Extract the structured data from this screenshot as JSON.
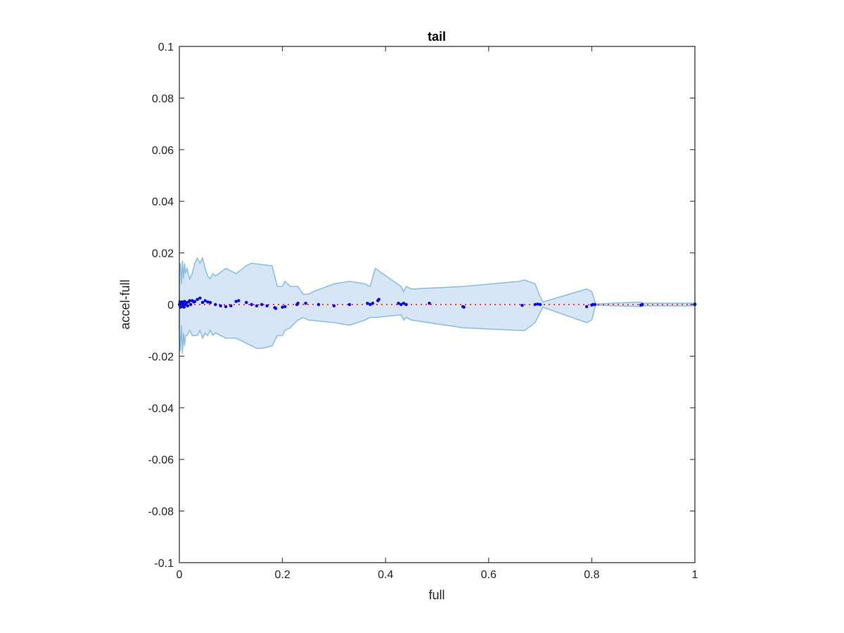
{
  "chart_data": {
    "type": "scatter",
    "title": "tail",
    "xlabel": "full",
    "ylabel": "accel-full",
    "xlim": [
      0,
      1
    ],
    "ylim": [
      -0.1,
      0.1
    ],
    "xticks": [
      0,
      0.2,
      0.4,
      0.6,
      0.8,
      1
    ],
    "xtick_labels": [
      "0",
      "0.2",
      "0.4",
      "0.6",
      "0.8",
      "1"
    ],
    "yticks": [
      0.1,
      0.08,
      0.06,
      0.04,
      0.02,
      0,
      -0.02,
      -0.04,
      -0.06,
      -0.08,
      -0.1
    ],
    "ytick_labels": [
      "0.1",
      "0.08",
      "0.06",
      "0.04",
      "0.02",
      "0",
      "-0.02",
      "-0.04",
      "-0.06",
      "-0.08",
      "-0.1"
    ],
    "grid": false,
    "colors": {
      "band_fill": "#d6e6f4",
      "band_edge": "#88bde0",
      "points": "#0000ff",
      "zero_line": "#ff0000",
      "axes": "#262626"
    },
    "band_upper": [
      [
        0,
        0.012
      ],
      [
        0.002,
        0.016
      ],
      [
        0.004,
        0.008
      ],
      [
        0.006,
        0.017
      ],
      [
        0.008,
        0.01
      ],
      [
        0.01,
        0.016
      ],
      [
        0.012,
        0.012
      ],
      [
        0.015,
        0.014
      ],
      [
        0.02,
        0.01
      ],
      [
        0.025,
        0.012
      ],
      [
        0.03,
        0.016
      ],
      [
        0.035,
        0.018
      ],
      [
        0.04,
        0.016
      ],
      [
        0.045,
        0.018
      ],
      [
        0.05,
        0.014
      ],
      [
        0.055,
        0.011
      ],
      [
        0.06,
        0.01
      ],
      [
        0.065,
        0.012
      ],
      [
        0.07,
        0.011
      ],
      [
        0.09,
        0.014
      ],
      [
        0.11,
        0.012
      ],
      [
        0.13,
        0.015
      ],
      [
        0.14,
        0.016
      ],
      [
        0.18,
        0.015
      ],
      [
        0.19,
        0.007
      ],
      [
        0.2,
        0.007
      ],
      [
        0.205,
        0.009
      ],
      [
        0.215,
        0.007
      ],
      [
        0.23,
        0.007
      ],
      [
        0.24,
        0.004
      ],
      [
        0.25,
        0.004
      ],
      [
        0.26,
        0.005
      ],
      [
        0.3,
        0.008
      ],
      [
        0.33,
        0.009
      ],
      [
        0.36,
        0.008
      ],
      [
        0.37,
        0.007
      ],
      [
        0.38,
        0.014
      ],
      [
        0.43,
        0.007
      ],
      [
        0.435,
        0.005
      ],
      [
        0.44,
        0.007
      ],
      [
        0.45,
        0.006
      ],
      [
        0.55,
        0.007
      ],
      [
        0.55,
        0.007
      ],
      [
        0.66,
        0.009
      ],
      [
        0.67,
        0.0095
      ],
      [
        0.69,
        0.008
      ],
      [
        0.7,
        0.003
      ],
      [
        0.705,
        0.001
      ],
      [
        0.79,
        0.006
      ],
      [
        0.8,
        0.005
      ],
      [
        0.805,
        0.002
      ],
      [
        0.807,
        0.0002
      ],
      [
        0.895,
        0.001
      ],
      [
        0.9,
        0.0005
      ],
      [
        1,
        0.0005
      ]
    ],
    "band_lower": [
      [
        0,
        -0.01
      ],
      [
        0.002,
        -0.018
      ],
      [
        0.004,
        -0.008
      ],
      [
        0.006,
        -0.019
      ],
      [
        0.008,
        -0.011
      ],
      [
        0.01,
        -0.016
      ],
      [
        0.012,
        -0.012
      ],
      [
        0.015,
        -0.012
      ],
      [
        0.02,
        -0.01
      ],
      [
        0.025,
        -0.012
      ],
      [
        0.03,
        -0.012
      ],
      [
        0.035,
        -0.012
      ],
      [
        0.04,
        -0.01
      ],
      [
        0.045,
        -0.013
      ],
      [
        0.05,
        -0.011
      ],
      [
        0.055,
        -0.012
      ],
      [
        0.06,
        -0.01
      ],
      [
        0.065,
        -0.012
      ],
      [
        0.07,
        -0.011
      ],
      [
        0.09,
        -0.013
      ],
      [
        0.11,
        -0.013
      ],
      [
        0.13,
        -0.015
      ],
      [
        0.15,
        -0.017
      ],
      [
        0.16,
        -0.017
      ],
      [
        0.18,
        -0.016
      ],
      [
        0.19,
        -0.012
      ],
      [
        0.2,
        -0.012
      ],
      [
        0.205,
        -0.01
      ],
      [
        0.215,
        -0.009
      ],
      [
        0.23,
        -0.006
      ],
      [
        0.24,
        -0.005
      ],
      [
        0.25,
        -0.006
      ],
      [
        0.3,
        -0.007
      ],
      [
        0.33,
        -0.008
      ],
      [
        0.36,
        -0.006
      ],
      [
        0.37,
        -0.005
      ],
      [
        0.38,
        -0.005
      ],
      [
        0.43,
        -0.004
      ],
      [
        0.435,
        -0.006
      ],
      [
        0.44,
        -0.005
      ],
      [
        0.45,
        -0.006
      ],
      [
        0.55,
        -0.009
      ],
      [
        0.55,
        -0.009
      ],
      [
        0.66,
        -0.01
      ],
      [
        0.67,
        -0.01
      ],
      [
        0.69,
        -0.007
      ],
      [
        0.7,
        -0.003
      ],
      [
        0.705,
        -0.001
      ],
      [
        0.79,
        -0.007
      ],
      [
        0.8,
        -0.006
      ],
      [
        0.805,
        -0.002
      ],
      [
        0.807,
        -0.0002
      ],
      [
        0.895,
        -0.0008
      ],
      [
        0.9,
        -0.0005
      ],
      [
        1,
        -0.0005
      ]
    ],
    "points": [
      [
        0,
        0.0
      ],
      [
        0.001,
        0.001
      ],
      [
        0.002,
        -0.001
      ],
      [
        0.003,
        0.0005
      ],
      [
        0.004,
        -0.0008
      ],
      [
        0.005,
        0.001
      ],
      [
        0.006,
        -0.0005
      ],
      [
        0.007,
        0.0008
      ],
      [
        0.008,
        0.0
      ],
      [
        0.009,
        -0.001
      ],
      [
        0.01,
        0.0012
      ],
      [
        0.012,
        0.0
      ],
      [
        0.014,
        0.0008
      ],
      [
        0.016,
        -0.0005
      ],
      [
        0.018,
        0.001
      ],
      [
        0.02,
        0.0015
      ],
      [
        0.022,
        0.0
      ],
      [
        0.025,
        0.0015
      ],
      [
        0.028,
        0.001
      ],
      [
        0.03,
        0.0012
      ],
      [
        0.035,
        0.002
      ],
      [
        0.04,
        0.0025
      ],
      [
        0.045,
        0.0008
      ],
      [
        0.05,
        0.0015
      ],
      [
        0.055,
        0.001
      ],
      [
        0.06,
        0.0008
      ],
      [
        0.07,
        0.0
      ],
      [
        0.08,
        -0.0005
      ],
      [
        0.09,
        -0.0008
      ],
      [
        0.1,
        -0.0005
      ],
      [
        0.11,
        0.0012
      ],
      [
        0.115,
        0.0015
      ],
      [
        0.13,
        0.0008
      ],
      [
        0.14,
        0.0
      ],
      [
        0.15,
        -0.0005
      ],
      [
        0.16,
        0.0
      ],
      [
        0.17,
        -0.0005
      ],
      [
        0.185,
        -0.0012
      ],
      [
        0.187,
        -0.0015
      ],
      [
        0.2,
        -0.001
      ],
      [
        0.205,
        -0.0008
      ],
      [
        0.228,
        0.0
      ],
      [
        0.23,
        0.0005
      ],
      [
        0.245,
        0.0005
      ],
      [
        0.27,
        0.0
      ],
      [
        0.3,
        -0.0005
      ],
      [
        0.33,
        0.0
      ],
      [
        0.365,
        0.0005
      ],
      [
        0.37,
        0.0
      ],
      [
        0.375,
        0.0005
      ],
      [
        0.385,
        0.0015
      ],
      [
        0.387,
        0.002
      ],
      [
        0.425,
        0.0005
      ],
      [
        0.43,
        0.0
      ],
      [
        0.435,
        0.0005
      ],
      [
        0.44,
        0.0
      ],
      [
        0.485,
        0.0005
      ],
      [
        0.55,
        -0.0008
      ],
      [
        0.552,
        -0.001
      ],
      [
        0.665,
        -0.0003
      ],
      [
        0.69,
        0.0
      ],
      [
        0.695,
        0.0002
      ],
      [
        0.7,
        0.0
      ],
      [
        0.79,
        -0.0008
      ],
      [
        0.8,
        -0.0002
      ],
      [
        0.802,
        0.0
      ],
      [
        0.806,
        0.0
      ],
      [
        0.895,
        -0.0002
      ],
      [
        0.898,
        0.0
      ],
      [
        1.0,
        0.0
      ],
      [
        1.0,
        0.0002
      ]
    ]
  }
}
